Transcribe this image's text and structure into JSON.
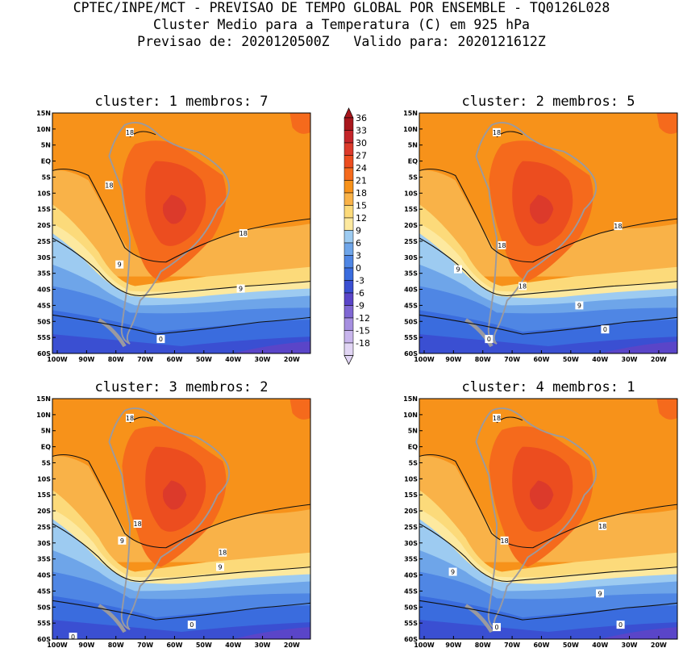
{
  "header": {
    "line1": "CPTEC/INPE/MCT - PREVISAO DE TEMPO GLOBAL POR ENSEMBLE - TQ0126L028",
    "line2": "Cluster Medio para a Temperatura (C) em 925 hPa",
    "line3": "Previsao de: 2020120500Z   Valido para: 2020121612Z"
  },
  "lat_ticks": [
    "15N",
    "10N",
    "5N",
    "EQ",
    "5S",
    "10S",
    "15S",
    "20S",
    "25S",
    "30S",
    "35S",
    "40S",
    "45S",
    "50S",
    "55S",
    "60S"
  ],
  "lon_ticks": [
    "100W",
    "90W",
    "80W",
    "70W",
    "60W",
    "50W",
    "40W",
    "30W",
    "20W"
  ],
  "colorbar": {
    "labels": [
      "36",
      "33",
      "30",
      "27",
      "24",
      "21",
      "18",
      "15",
      "12",
      "9",
      "6",
      "3",
      "0",
      "-3",
      "-6",
      "-9",
      "-12",
      "-15",
      "-18"
    ],
    "colors": [
      "#a8161c",
      "#c4252a",
      "#dc3a2b",
      "#ec4d1f",
      "#f56a1c",
      "#f7921a",
      "#f9b248",
      "#fcda7a",
      "#fde99f",
      "#9dcbf1",
      "#6ea5e9",
      "#4f86e4",
      "#3a6cde",
      "#3a4fd2",
      "#5a45c8",
      "#7f67d3",
      "#a68fe0",
      "#c8b5ec",
      "#e1d5f4"
    ]
  },
  "panels": [
    {
      "title": "cluster: 1   membros: 7",
      "labels": [
        "18",
        "18",
        "18",
        "9",
        "9",
        "0"
      ]
    },
    {
      "title": "cluster: 2   membros: 5",
      "labels": [
        "18",
        "18",
        "18",
        "18",
        "9",
        "9",
        "0",
        "0"
      ]
    },
    {
      "title": "cluster: 3   membros: 2",
      "labels": [
        "18",
        "18",
        "18",
        "9",
        "9",
        "0",
        "0"
      ]
    },
    {
      "title": "cluster: 4   membros: 1",
      "labels": [
        "18",
        "18",
        "18",
        "9",
        "9",
        "0",
        "0"
      ]
    }
  ]
}
